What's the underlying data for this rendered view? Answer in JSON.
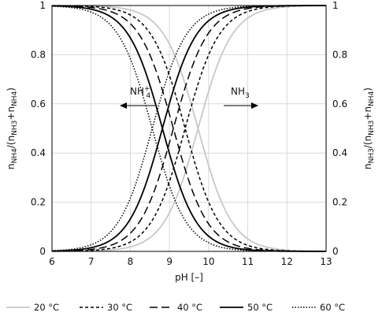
{
  "chart_data": {
    "type": "line",
    "xlabel": "pH [–]",
    "ylabel_left": "n_NH4/(n_NH3+n_NH4)",
    "ylabel_right": "n_NH3/(n_NH3+n_NH4)",
    "xlim": [
      6,
      13
    ],
    "ylim": [
      0,
      1
    ],
    "x_ticks": [
      "6",
      "7",
      "8",
      "9",
      "10",
      "11",
      "12",
      "13"
    ],
    "y_ticks": [
      "0",
      "0.2",
      "0.4",
      "0.6",
      "0.8",
      "1"
    ],
    "grid": true,
    "legend_position": "bottom",
    "annotations": {
      "left": "NH4+",
      "right": "NH3"
    },
    "series": [
      {
        "name": "20 °C",
        "pKa": 9.73,
        "color": "#c8c8c8",
        "style": "solid"
      },
      {
        "name": "30 °C",
        "pKa": 9.4,
        "color": "#000000",
        "style": "short-dash"
      },
      {
        "name": "40 °C",
        "pKa": 9.1,
        "color": "#000000",
        "style": "long-dash"
      },
      {
        "name": "50 °C",
        "pKa": 8.82,
        "color": "#000000",
        "style": "solid"
      },
      {
        "name": "60 °C",
        "pKa": 8.56,
        "color": "#000000",
        "style": "dotted"
      }
    ],
    "curve_description": "Each series shows fraction NH4+ = 1/(1+10^(pH−pKa)) (decreasing) and fraction NH3 = 1 − NH4+ fraction (increasing)"
  }
}
